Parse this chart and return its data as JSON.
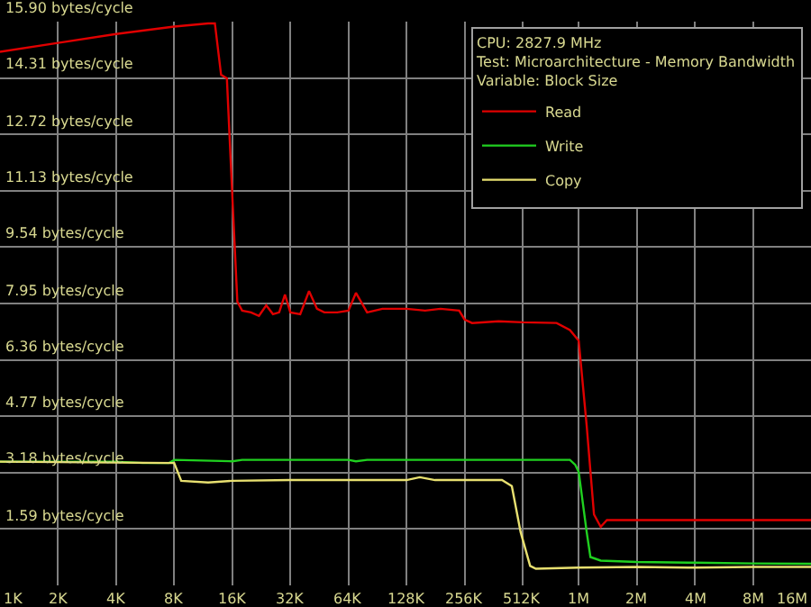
{
  "chart_data": {
    "type": "line",
    "legend_title": "CPU: 2827.9 MHz\nTest: Microarchitecture - Memory Bandwidth\nVariable: Block Size",
    "log": "x",
    "xlim": [
      1000,
      16000000
    ],
    "xticks": [
      {
        "value": 1000,
        "label": "1K"
      },
      {
        "value": 2000,
        "label": "2K"
      },
      {
        "value": 4000,
        "label": "4K"
      },
      {
        "value": 8000,
        "label": "8K"
      },
      {
        "value": 16000,
        "label": "16K"
      },
      {
        "value": 32000,
        "label": "32K"
      },
      {
        "value": 64000,
        "label": "64K"
      },
      {
        "value": 128000,
        "label": "128K"
      },
      {
        "value": 256000,
        "label": "256K"
      },
      {
        "value": 512000,
        "label": "512K"
      },
      {
        "value": 1000000,
        "label": "1M"
      },
      {
        "value": 2000000,
        "label": "2M"
      },
      {
        "value": 4000000,
        "label": "4M"
      },
      {
        "value": 8000000,
        "label": "8M"
      },
      {
        "value": 16000000,
        "label": "16M"
      }
    ],
    "ylim": [
      0,
      15.9
    ],
    "yticks": [
      {
        "value": 1.59,
        "label": "1.59 bytes/cycle"
      },
      {
        "value": 3.18,
        "label": "3.18 bytes/cycle"
      },
      {
        "value": 4.77,
        "label": "4.77 bytes/cycle"
      },
      {
        "value": 6.36,
        "label": "6.36 bytes/cycle"
      },
      {
        "value": 7.95,
        "label": "7.95 bytes/cycle"
      },
      {
        "value": 9.54,
        "label": "9.54 bytes/cycle"
      },
      {
        "value": 11.13,
        "label": "11.13 bytes/cycle"
      },
      {
        "value": 12.72,
        "label": "12.72 bytes/cycle"
      },
      {
        "value": 14.31,
        "label": "14.31 bytes/cycle"
      },
      {
        "value": 15.9,
        "label": "15.90 bytes/cycle"
      }
    ],
    "grid": true,
    "legend": "top right",
    "marker": "none",
    "line_style": "solid",
    "series": [
      {
        "name": "Read",
        "color": "#e00000",
        "x": [
          1000,
          2000,
          4000,
          8000,
          12000,
          13000,
          14000,
          15000,
          16000,
          17000,
          18000,
          20000,
          22000,
          24000,
          26000,
          28000,
          30000,
          32000,
          36000,
          40000,
          44000,
          48000,
          56000,
          64000,
          70000,
          80000,
          96000,
          128000,
          160000,
          192000,
          240000,
          256000,
          280000,
          384000,
          512000,
          768000,
          900000,
          1000000,
          1100000,
          1200000,
          1300000,
          1400000,
          2000000,
          4000000,
          8000000,
          16000000
        ],
        "values": [
          15.05,
          15.3,
          15.55,
          15.76,
          15.85,
          15.85,
          14.4,
          14.3,
          11,
          8.0,
          7.75,
          7.7,
          7.6,
          7.9,
          7.65,
          7.7,
          8.2,
          7.7,
          7.65,
          8.3,
          7.8,
          7.7,
          7.7,
          7.75,
          8.25,
          7.7,
          7.8,
          7.8,
          7.75,
          7.8,
          7.75,
          7.5,
          7.4,
          7.45,
          7.42,
          7.4,
          7.2,
          6.9,
          4.5,
          2.0,
          1.65,
          1.84,
          1.84,
          1.84,
          1.84,
          1.84
        ]
      },
      {
        "name": "Write",
        "color": "#20d020",
        "x": [
          1000,
          4000,
          5500,
          7500,
          8000,
          16000,
          18000,
          64000,
          70000,
          80000,
          512000,
          900000,
          960000,
          1000000,
          1100000,
          1150000,
          1300000,
          2000000,
          4000000,
          8000000,
          16000000
        ],
        "values": [
          3.49,
          3.49,
          3.45,
          3.45,
          3.54,
          3.5,
          3.54,
          3.54,
          3.5,
          3.54,
          3.54,
          3.54,
          3.4,
          3.2,
          1.5,
          0.8,
          0.7,
          0.66,
          0.64,
          0.62,
          0.61
        ]
      },
      {
        "name": "Copy",
        "color": "#e8e070",
        "x": [
          1000,
          8000,
          8700,
          12000,
          16000,
          32000,
          128000,
          150000,
          180000,
          256000,
          400000,
          450000,
          500000,
          560000,
          600000,
          1000000,
          2000000,
          4000000,
          8000000,
          16000000
        ],
        "values": [
          3.49,
          3.45,
          2.95,
          2.9,
          2.95,
          2.97,
          2.97,
          3.05,
          2.97,
          2.97,
          2.97,
          2.8,
          1.5,
          0.55,
          0.47,
          0.5,
          0.52,
          0.5,
          0.52,
          0.52
        ]
      }
    ]
  }
}
